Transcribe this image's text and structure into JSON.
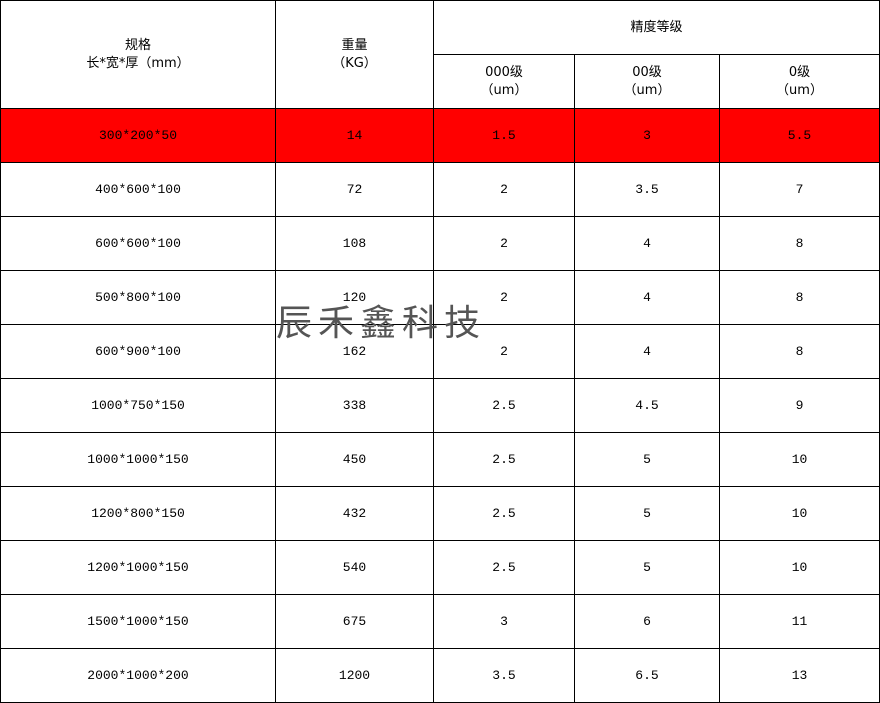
{
  "header": {
    "spec": "规格",
    "spec_unit": "长*宽*厚（mm）",
    "weight": "重量",
    "weight_unit": "（KG）",
    "grade_group": "精度等级",
    "grades": [
      {
        "label": "000级",
        "unit": "（um）"
      },
      {
        "label": "00级",
        "unit": "（um）"
      },
      {
        "label": "0级",
        "unit": "（um）"
      }
    ]
  },
  "highlight_color": "#ff0000",
  "rows": [
    [
      "300*200*50",
      "14",
      "1.5",
      "3",
      "5.5"
    ],
    [
      "400*600*100",
      "72",
      "2",
      "3.5",
      "7"
    ],
    [
      "600*600*100",
      "108",
      "2",
      "4",
      "8"
    ],
    [
      "500*800*100",
      "120",
      "2",
      "4",
      "8"
    ],
    [
      "600*900*100",
      "162",
      "2",
      "4",
      "8"
    ],
    [
      "1000*750*150",
      "338",
      "2.5",
      "4.5",
      "9"
    ],
    [
      "1000*1000*150",
      "450",
      "2.5",
      "5",
      "10"
    ],
    [
      "1200*800*150",
      "432",
      "2.5",
      "5",
      "10"
    ],
    [
      "1200*1000*150",
      "540",
      "2.5",
      "5",
      "10"
    ],
    [
      "1500*1000*150",
      "675",
      "3",
      "6",
      "11"
    ],
    [
      "2000*1000*200",
      "1200",
      "3.5",
      "6.5",
      "13"
    ]
  ],
  "watermark": "辰禾鑫科技"
}
